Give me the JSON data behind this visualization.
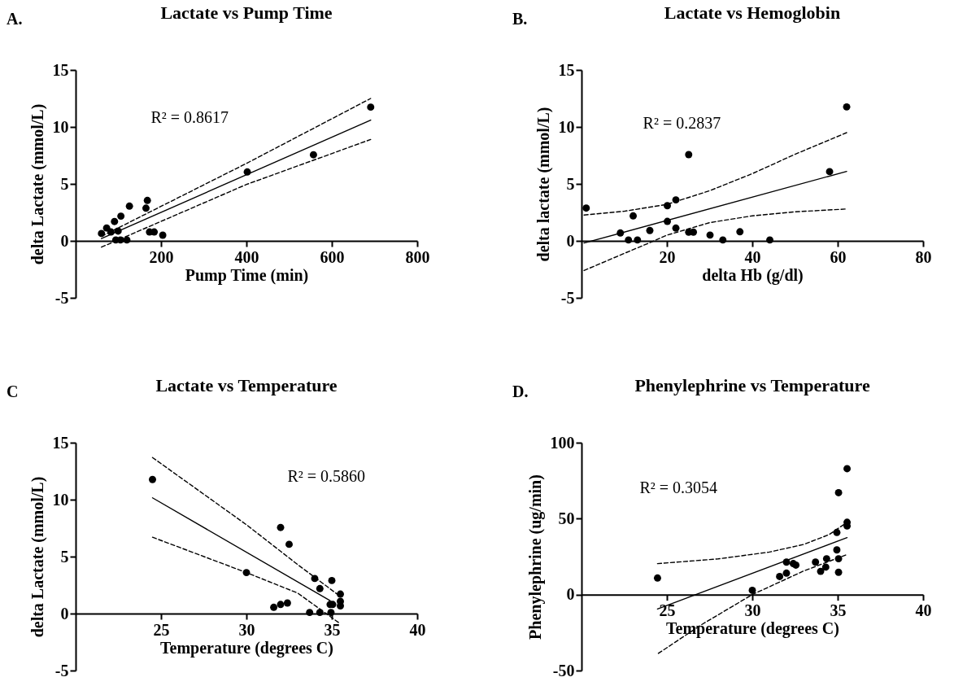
{
  "chart_data": [
    {
      "type": "scatter",
      "title": "Lactate vs Pump Time",
      "xlabel": "Pump Time (min)",
      "ylabel": "delta Lactate (mmol/L)",
      "annotations": [
        "A.",
        "R² = 0.8617"
      ],
      "xlim": [
        0,
        800
      ],
      "ylim": [
        -5,
        15
      ],
      "xticks": [
        200,
        400,
        600,
        800
      ],
      "yticks": [
        -5,
        0,
        5,
        10,
        15
      ],
      "series": [
        {
          "type": "scatter",
          "marker": "circle",
          "color": "#000000",
          "x": [
            60.5,
            72.6,
            82.7,
            91,
            99.5,
            106,
            126,
            94,
            105,
            120,
            164.7,
            168,
            173,
            184,
            204,
            402,
            557,
            691
          ],
          "values": [
            0.65,
            1.13,
            0.78,
            1.7,
            0.86,
            2.17,
            3.05,
            0.08,
            0.08,
            0.08,
            2.87,
            3.55,
            0.78,
            0.78,
            0.5,
            6.05,
            7.56,
            11.74
          ]
        },
        {
          "type": "line",
          "line_style": "solid",
          "color": "#000000",
          "x": [
            60.5,
            691
          ],
          "values": [
            0.2,
            10.6
          ]
        },
        {
          "type": "line",
          "line_style": "dashed",
          "color": "#000000",
          "x": [
            60.5,
            400,
            691
          ],
          "values": [
            0.4,
            6.8,
            12.5
          ]
        },
        {
          "type": "line",
          "line_style": "dashed",
          "color": "#000000",
          "x": [
            60.5,
            400,
            691
          ],
          "values": [
            -0.55,
            4.95,
            8.9
          ]
        }
      ]
    },
    {
      "type": "scatter",
      "title": "Lactate vs Hemoglobin",
      "xlabel": "delta Hb (g/dl)",
      "ylabel": "delta lactate (mmol/L)",
      "annotations": [
        "B.",
        "R² = 0.2837"
      ],
      "xlim": [
        0,
        80
      ],
      "ylim": [
        -5,
        15
      ],
      "xticks": [
        20,
        40,
        60,
        80
      ],
      "yticks": [
        -5,
        0,
        5,
        10,
        15
      ],
      "series": [
        {
          "type": "scatter",
          "marker": "circle",
          "color": "#000000",
          "x": [
            1.1,
            9.1,
            11,
            12.1,
            13.1,
            16,
            20.1,
            20.1,
            22.1,
            22.1,
            25.1,
            25.1,
            26.2,
            30.1,
            33.1,
            37.1,
            44.1,
            58.1,
            62.1
          ],
          "values": [
            2.88,
            0.69,
            0.08,
            2.19,
            0.08,
            0.91,
            3.09,
            1.71,
            3.6,
            1.12,
            7.57,
            0.77,
            0.77,
            0.51,
            0.08,
            0.8,
            0.08,
            6.08,
            11.76
          ]
        },
        {
          "type": "line",
          "line_style": "solid",
          "color": "#000000",
          "x": [
            0.6,
            62.1
          ],
          "values": [
            -0.19,
            6.1
          ]
        },
        {
          "type": "line",
          "line_style": "dashed",
          "color": "#000000",
          "x": [
            0.6,
            10,
            20,
            30,
            40,
            50,
            62.1
          ],
          "values": [
            2.27,
            2.6,
            3.2,
            4.4,
            5.9,
            7.6,
            9.5
          ]
        },
        {
          "type": "line",
          "line_style": "dashed",
          "color": "#000000",
          "x": [
            0.6,
            10,
            17,
            20,
            30,
            40,
            50,
            62.1
          ],
          "values": [
            -2.6,
            -1.1,
            0,
            0.5,
            1.6,
            2.2,
            2.55,
            2.8
          ]
        }
      ]
    },
    {
      "type": "scatter",
      "title": "Lactate vs Temperature",
      "xlabel": "Temperature (degrees C)",
      "ylabel": "delta Lactate (mmol/L)",
      "annotations": [
        "C",
        "R² = 0.5860"
      ],
      "xlim": [
        20,
        40
      ],
      "ylim": [
        -5,
        15
      ],
      "xticks": [
        25,
        30,
        35,
        40
      ],
      "yticks": [
        -5,
        0,
        5,
        10,
        15
      ],
      "series": [
        {
          "type": "scatter",
          "marker": "circle",
          "color": "#000000",
          "x": [
            24.5,
            30,
            31.6,
            32,
            32.4,
            32,
            32.5,
            33.7,
            34,
            34.3,
            34.3,
            35,
            34.9,
            35.05,
            34.95,
            35.5,
            35.5,
            35.5
          ],
          "values": [
            11.77,
            3.6,
            0.55,
            0.8,
            0.93,
            7.56,
            6.08,
            0.1,
            3.08,
            2.19,
            0.1,
            2.9,
            0.8,
            0.8,
            0.1,
            1.71,
            1.08,
            0.68
          ]
        },
        {
          "type": "line",
          "line_style": "solid",
          "color": "#000000",
          "x": [
            24.5,
            34.9
          ],
          "values": [
            10.16,
            1.13
          ]
        },
        {
          "type": "line",
          "line_style": "dashed",
          "color": "#000000",
          "x": [
            24.5,
            30,
            33,
            35.5
          ],
          "values": [
            13.7,
            7.8,
            4.3,
            1.5
          ]
        },
        {
          "type": "line",
          "line_style": "dashed",
          "color": "#000000",
          "x": [
            24.5,
            30,
            33,
            35.5
          ],
          "values": [
            6.7,
            3.6,
            1.8,
            -0.9
          ]
        }
      ]
    },
    {
      "type": "scatter",
      "title": "Phenylephrine vs Temperature",
      "xlabel": "Temperature (degrees C)",
      "ylabel": "Phenylephrine (ug/min)",
      "annotations": [
        "D.",
        "R² = 0.3054"
      ],
      "xlim": [
        20,
        40
      ],
      "ylim": [
        -50,
        100
      ],
      "xticks": [
        25,
        30,
        35,
        40
      ],
      "yticks": [
        -50,
        0,
        50,
        100
      ],
      "series": [
        {
          "type": "scatter",
          "marker": "circle",
          "color": "#000000",
          "x": [
            24.45,
            30,
            31.6,
            32,
            32,
            32.4,
            32.55,
            33.7,
            34,
            34.3,
            34.35,
            34.95,
            34.95,
            35.05,
            35.05,
            35.05,
            35.55,
            35.55,
            35.55
          ],
          "values": [
            10.9,
            2.8,
            11.9,
            14.1,
            21.4,
            20.4,
            19.4,
            21.4,
            15.3,
            18.1,
            23.6,
            40.9,
            29.4,
            23.6,
            14.7,
            67.1,
            47.6,
            45.2,
            82.9
          ]
        },
        {
          "type": "line",
          "line_style": "solid",
          "color": "#000000",
          "x": [
            24.45,
            35.55
          ],
          "values": [
            -9.5,
            37.5
          ]
        },
        {
          "type": "line",
          "line_style": "dashed",
          "color": "#000000",
          "x": [
            24.45,
            28,
            31,
            33,
            34.5,
            35.55
          ],
          "values": [
            20.4,
            23.5,
            28,
            33,
            39.5,
            47.6
          ]
        },
        {
          "type": "line",
          "line_style": "dashed",
          "color": "#000000",
          "x": [
            24.5,
            27,
            30,
            33,
            35.55
          ],
          "values": [
            -38.7,
            -20,
            0,
            15.5,
            26.4
          ]
        }
      ]
    }
  ]
}
